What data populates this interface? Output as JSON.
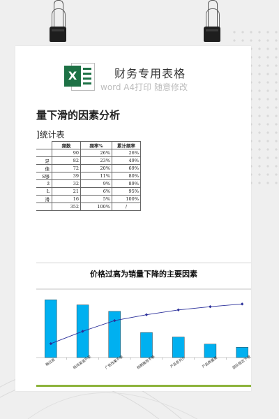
{
  "brand": {
    "icon_letter": "X",
    "title": "财务专用表格",
    "subtitle": "word A4打印 随意修改"
  },
  "document": {
    "title": "量下滑的因素分析",
    "table_caption": "]统计表"
  },
  "table": {
    "headers": [
      "频数",
      "频率%",
      "累计频率"
    ],
    "rows": [
      {
        "label": "",
        "count": "90",
        "freq": "26%",
        "cum": "26%"
      },
      {
        "label": "足",
        "count": "82",
        "freq": "23%",
        "cum": "49%"
      },
      {
        "label": "佳",
        "count": "72",
        "freq": "20%",
        "cum": "69%"
      },
      {
        "label": "S够",
        "count": "39",
        "freq": "11%",
        "cum": "80%"
      },
      {
        "label": "ž",
        "count": "32",
        "freq": "9%",
        "cum": "89%"
      },
      {
        "label": "Ł",
        "count": "21",
        "freq": "6%",
        "cum": "95%"
      },
      {
        "label": "滑",
        "count": "16",
        "freq": "5%",
        "cum": "100%"
      }
    ],
    "total": {
      "count": "352",
      "freq": "100%",
      "cum": "/"
    }
  },
  "chart_data": {
    "type": "bar",
    "title": "价格过高为销量下降的主要因素",
    "categories": [
      "格过高",
      "档流渠道不足",
      "广告效果不佳",
      "档期推荐不够",
      "产品系列少",
      "产品质量差",
      "团队稳定下滑"
    ],
    "series": [
      {
        "type": "bar",
        "values": [
          90,
          82,
          72,
          39,
          32,
          21,
          16
        ],
        "color": "#00b0f0"
      },
      {
        "type": "line",
        "values": [
          26,
          49,
          69,
          80,
          89,
          95,
          100
        ],
        "color": "#2a2f9a"
      }
    ],
    "ylim_bar": [
      0,
      100
    ],
    "ylim_line": [
      0,
      120
    ],
    "grid": false,
    "legend": "none"
  },
  "colors": {
    "bar": "#00b0f0",
    "line": "#2a2f9a",
    "excel_green": "#1d7145",
    "footer_bar": "#8db33c"
  }
}
